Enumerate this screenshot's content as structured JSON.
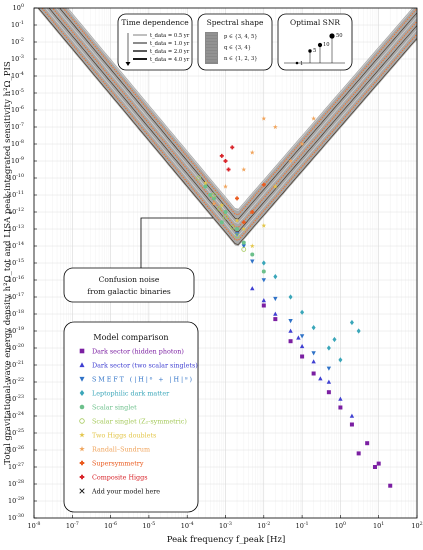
{
  "chart_data": {
    "type": "scatter",
    "xlabel": "Peak frequency f_peak [Hz]",
    "ylabel": "Total gravitational-wave energy density h²Ω_tot and LISA peak-integrated sensitivity h²Ω_PIS",
    "x_scale": "log",
    "y_scale": "log",
    "xlim": [
      1e-08,
      100
    ],
    "ylim": [
      1e-30,
      1
    ],
    "x_tick_exponents": [
      -8,
      -7,
      -6,
      -5,
      -4,
      -3,
      -2,
      -1,
      0,
      1,
      2
    ],
    "y_tick_exponents": [
      0,
      -1,
      -2,
      -3,
      -4,
      -5,
      -6,
      -7,
      -8,
      -9,
      -10,
      -11,
      -12,
      -13,
      -14,
      -15,
      -16,
      -17,
      -18,
      -19,
      -20,
      -21,
      -22,
      -23,
      -24,
      -25,
      -26,
      -27,
      -28,
      -29,
      -30
    ],
    "grid": true,
    "sensitivity_band": {
      "min_log10_x": -2.7,
      "min_log10_y": -13.2,
      "left_log10_slope": -2.7,
      "right_log10_slope": 2.6
    },
    "annotations": {
      "time_dependence": {
        "title": "Time dependence",
        "items": [
          "t_data = 0.5 yr",
          "t_data = 1.0 yr",
          "t_data = 2.0 yr",
          "t_data = 4.0 yr"
        ]
      },
      "spectral_shape": {
        "title": "Spectral shape",
        "items": [
          "p ∈ {3, 4, 5}",
          "q ∈ {3, 4}",
          "n ∈ {1, 2, 3}"
        ]
      },
      "optimal_snr": {
        "title": "Optimal SNR",
        "values": [
          "1",
          "5",
          "10",
          "50"
        ]
      },
      "confusion_noise": [
        "Confusion noise",
        "from galactic binaries"
      ]
    },
    "legend_title": "Model comparison",
    "legend_position": "bottom-left",
    "series": [
      {
        "name": "Dark sector (hidden photon)",
        "color": "#7b1fa2",
        "marker": "square",
        "points": [
          [
            0.01,
            -17.5
          ],
          [
            0.02,
            -18.3
          ],
          [
            0.05,
            -19.6
          ],
          [
            0.1,
            -20.5
          ],
          [
            0.2,
            -21.5
          ],
          [
            0.5,
            -22.6
          ],
          [
            1,
            -23.5
          ],
          [
            2,
            -24.5
          ],
          [
            5,
            -25.6
          ],
          [
            10,
            -26.8
          ],
          [
            20,
            -28.1
          ],
          [
            3,
            -26.2
          ],
          [
            8,
            -27.0
          ]
        ]
      },
      {
        "name": "Dark sector (two scalar singlets)",
        "color": "#3f3fd1",
        "marker": "triangle-up",
        "points": [
          [
            0.005,
            -16.5
          ],
          [
            0.01,
            -17.2
          ],
          [
            0.02,
            -18.0
          ],
          [
            0.05,
            -19.0
          ],
          [
            0.1,
            -19.9
          ],
          [
            0.2,
            -20.8
          ],
          [
            0.5,
            -22.0
          ],
          [
            1,
            -23.0
          ],
          [
            2,
            -24.0
          ],
          [
            0.3,
            -21.8
          ],
          [
            0.08,
            -19.4
          ]
        ]
      },
      {
        "name": "SMEFT (|H|⁶ + |H|⁸)",
        "color": "#2f72c7",
        "marker": "triangle-down",
        "points": [
          [
            0.002,
            -13.3
          ],
          [
            0.003,
            -14.0
          ],
          [
            0.005,
            -14.9
          ],
          [
            0.01,
            -16.0
          ],
          [
            0.02,
            -17.1
          ],
          [
            0.05,
            -18.4
          ],
          [
            0.1,
            -19.3
          ],
          [
            0.2,
            -20.3
          ],
          [
            0.5,
            -21.2
          ]
        ]
      },
      {
        "name": "Leptophilic dark matter",
        "color": "#3aa6b9",
        "marker": "diamond",
        "points": [
          [
            0.01,
            -15.0
          ],
          [
            0.02,
            -15.8
          ],
          [
            0.05,
            -17.0
          ],
          [
            0.1,
            -17.9
          ],
          [
            0.2,
            -18.8
          ],
          [
            0.5,
            -20.0
          ],
          [
            1,
            -20.7
          ],
          [
            2,
            -18.5
          ],
          [
            3,
            -19.0
          ],
          [
            0.7,
            -19.5
          ]
        ]
      },
      {
        "name": "Scalar singlet",
        "color": "#6cc08b",
        "marker": "circle",
        "points": [
          [
            0.0003,
            -10.5
          ],
          [
            0.0005,
            -11.2
          ],
          [
            0.001,
            -12.0
          ],
          [
            0.002,
            -13.0
          ],
          [
            0.003,
            -13.8
          ],
          [
            0.005,
            -14.5
          ],
          [
            0.01,
            -15.5
          ],
          [
            0.0004,
            -11.0
          ],
          [
            0.0008,
            -12.6
          ]
        ]
      },
      {
        "name": "Scalar singlet (Z₂-symmetric)",
        "color": "#a4c95a",
        "marker": "circle-open",
        "points": [
          [
            0.0002,
            -10.0
          ],
          [
            0.0005,
            -11.0
          ],
          [
            0.001,
            -12.3
          ],
          [
            0.002,
            -13.4
          ],
          [
            0.003,
            -14.2
          ],
          [
            0.0007,
            -11.8
          ],
          [
            0.0015,
            -12.9
          ]
        ]
      },
      {
        "name": "Two Higgs doublets",
        "color": "#e3c64a",
        "marker": "star",
        "points": [
          [
            0.0003,
            -10.3
          ],
          [
            0.0008,
            -11.6
          ],
          [
            0.002,
            -12.5
          ],
          [
            0.005,
            -14.0
          ],
          [
            0.01,
            -12.8
          ],
          [
            0.02,
            -10.5
          ],
          [
            0.003,
            -13.0
          ]
        ]
      },
      {
        "name": "Randall–Sundrum",
        "color": "#f0a35a",
        "marker": "star",
        "points": [
          [
            0.003,
            -9.5
          ],
          [
            0.005,
            -8.5
          ],
          [
            0.01,
            -6.5
          ],
          [
            0.02,
            -7.0
          ],
          [
            0.001,
            -10.5
          ],
          [
            0.0005,
            -11.5
          ],
          [
            0.1,
            -8.0
          ],
          [
            0.05,
            -9.0
          ],
          [
            0.2,
            -6.5
          ]
        ]
      },
      {
        "name": "Supersymmetry",
        "color": "#ea5a1e",
        "marker": "cross-filled",
        "points": [
          [
            0.01,
            -10.4
          ],
          [
            0.002,
            -11.2
          ],
          [
            0.005,
            -12.0
          ],
          [
            0.003,
            -12.6
          ]
        ]
      },
      {
        "name": "Composite Higgs",
        "color": "#d8242a",
        "marker": "cross-filled",
        "points": [
          [
            0.0008,
            -8.7
          ],
          [
            0.001,
            -9.0
          ],
          [
            0.0015,
            -8.2
          ],
          [
            0.0012,
            -9.5
          ]
        ]
      },
      {
        "name": "Add your model here",
        "color": "#111111",
        "marker": "x",
        "points": []
      }
    ]
  }
}
